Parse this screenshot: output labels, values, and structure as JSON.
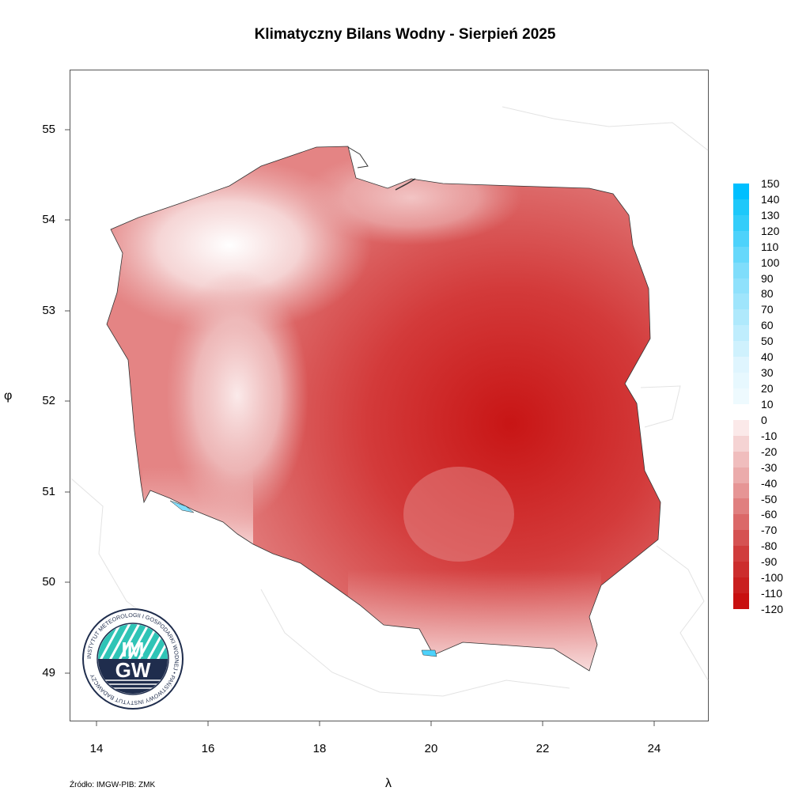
{
  "title": "Klimatyczny Bilans Wodny - Sierpień 2025",
  "axes": {
    "x_label": "λ",
    "y_label": "φ",
    "x_ticks": [
      "14",
      "16",
      "18",
      "20",
      "22",
      "24"
    ],
    "y_ticks": [
      "55",
      "54",
      "53",
      "52",
      "51",
      "50",
      "49"
    ]
  },
  "legend": {
    "labels": [
      "150",
      "140",
      "130",
      "120",
      "110",
      "100",
      "90",
      "80",
      "70",
      "60",
      "50",
      "40",
      "30",
      "20",
      "10",
      "0",
      "-10",
      "-20",
      "-30",
      "-40",
      "-50",
      "-60",
      "-70",
      "-80",
      "-90",
      "-100",
      "-110",
      "-120"
    ],
    "colors": [
      "#00bfff",
      "#1ec8fa",
      "#33cdfa",
      "#4dd2fb",
      "#66d8fb",
      "#7fddfb",
      "#8fe1fc",
      "#9fe5fc",
      "#afe9fc",
      "#bfedfd",
      "#cff1fd",
      "#dff5fe",
      "#e7f8fe",
      "#eefafe",
      "#ffffff",
      "#fbe9e9",
      "#f5d3d3",
      "#f0bdbd",
      "#ebabab",
      "#e69595",
      "#e07f7f",
      "#db6868",
      "#d55252",
      "#d03c3c",
      "#cc2d2d",
      "#c91f1f",
      "#c81010"
    ]
  },
  "source": "Źródło: IMGW-PIB: ZMK",
  "logo": {
    "ring_text": "INSTYTUT METEOROLOGII I GOSPODARKI WODNEJ • PAŃSTWOWY INSTYTUT BADAWCZY",
    "letters_top": "IM",
    "letters_bottom": "GW"
  }
}
